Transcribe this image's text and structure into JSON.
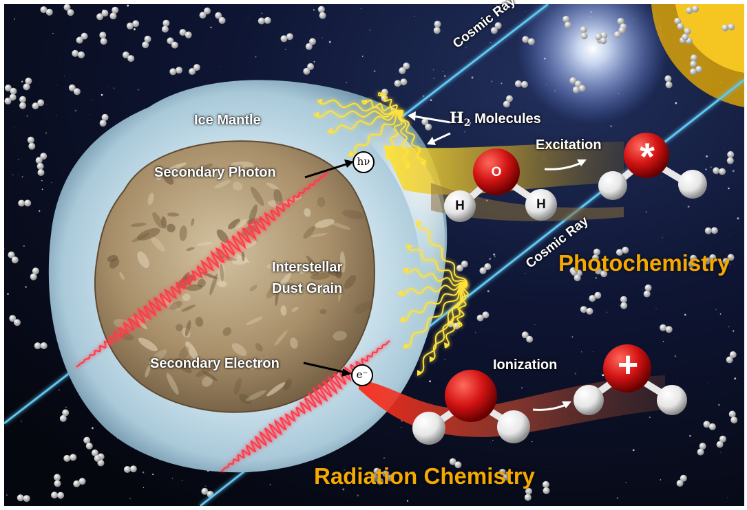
{
  "labels": {
    "cosmic_ray_top": "Cosmic Ray",
    "cosmic_ray_right": "Cosmic Ray",
    "ice_mantle": "Ice Mantle",
    "h2_prefix": "H",
    "h2_subscript": "2",
    "h2_suffix": " Molecules",
    "secondary_photon": "Secondary Photon",
    "photon_symbol": "hν",
    "interstellar": "Interstellar",
    "dust_grain": "Dust Grain",
    "secondary_electron": "Secondary Electron",
    "electron_symbol": "e⁻",
    "excitation": "Excitation",
    "ionization": "Ionization",
    "photochemistry": "Photochemistry",
    "radiation_chemistry": "Radiation Chemistry"
  },
  "molecules": {
    "oxygen": "O",
    "hydrogen_left": "H",
    "hydrogen_right": "H",
    "excited_mark": "*",
    "ion_mark": "+"
  },
  "colors": {
    "space": "#0b1027",
    "heading": "#f5a900",
    "cosmic_ray": "#5fc6f2",
    "yellow_wave": "#ffe23b",
    "red_wave": "#ff3a4a",
    "oxygen_red": "#d41414",
    "hydrogen_white": "#f2f2f2",
    "rock": "#b09a78",
    "ice": "#cfe6f2"
  }
}
